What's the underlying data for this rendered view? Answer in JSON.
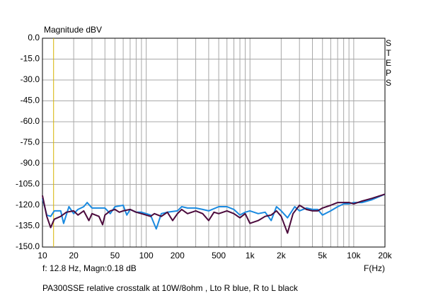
{
  "chart_data": {
    "type": "line",
    "title": "Magnitude dBV",
    "side_label": "STEPS",
    "x_label": "F(Hz)",
    "cursor_readout": "f:  12.8 Hz, Magn:0.18 dB",
    "cursor_x": 12.8,
    "cursor_color": "#d4b400",
    "caption": "PA300SSE relative crosstalk at 10W/8ohm , Lto R blue, R to L black",
    "xscale": "log",
    "grid": true,
    "xlim": [
      10,
      20000
    ],
    "ylim": [
      -150,
      0
    ],
    "xticks": [
      10,
      20,
      50,
      100,
      200,
      500,
      {
        "value": 1000,
        "label": "1k"
      },
      {
        "value": 2000,
        "label": "2k"
      },
      {
        "value": 5000,
        "label": "5k"
      },
      {
        "value": 10000,
        "label": "10k"
      },
      {
        "value": 20000,
        "label": "20k"
      }
    ],
    "x_minor_ticks": [
      30,
      40,
      60,
      70,
      80,
      90,
      300,
      400,
      600,
      700,
      800,
      900,
      3000,
      4000,
      6000,
      7000,
      8000,
      9000
    ],
    "yticks": [
      {
        "value": 0,
        "label": "0.0"
      },
      {
        "value": -15,
        "label": "-15.0"
      },
      {
        "value": -30,
        "label": "-30.0"
      },
      {
        "value": -45,
        "label": "-45.0"
      },
      {
        "value": -60,
        "label": "-60.0"
      },
      {
        "value": -75,
        "label": "-75.0"
      },
      {
        "value": -90,
        "label": "-90.0"
      },
      {
        "value": -105,
        "label": "-105.0"
      },
      {
        "value": -120,
        "label": "-120.0"
      },
      {
        "value": -135,
        "label": "-135.0"
      },
      {
        "value": -150,
        "label": "-150.0"
      }
    ],
    "series": [
      {
        "color": "#1a8ae0",
        "x": [
          10,
          11,
          12,
          13,
          15,
          16,
          18,
          20,
          22,
          25,
          27,
          30,
          40,
          45,
          50,
          60,
          65,
          70,
          80,
          90,
          100,
          110,
          125,
          140,
          160,
          200,
          220,
          250,
          300,
          350,
          400,
          500,
          600,
          700,
          800,
          900,
          1000,
          1200,
          1400,
          1600,
          1800,
          2000,
          2300,
          2700,
          3000,
          3500,
          4000,
          4500,
          5000,
          6000,
          7000,
          8000,
          9000,
          10000,
          12000,
          15000,
          20000
        ],
        "values": [
          -115,
          -127,
          -128,
          -124,
          -124,
          -133,
          -121,
          -126,
          -123,
          -121,
          -118,
          -122,
          -122,
          -126,
          -121,
          -120,
          -127,
          -123,
          -125,
          -125,
          -126,
          -127,
          -137,
          -126,
          -125,
          -124,
          -121,
          -122,
          -122,
          -123,
          -124,
          -121,
          -121,
          -123,
          -127,
          -125,
          -124,
          -126,
          -125,
          -131,
          -121,
          -124,
          -129,
          -121,
          -124,
          -122,
          -123,
          -123,
          -127,
          -124,
          -121,
          -119,
          -119,
          -118,
          -118,
          -116,
          -112
        ]
      },
      {
        "color": "#4b0a3c",
        "x": [
          10,
          11,
          12,
          13,
          15,
          17,
          20,
          22,
          25,
          28,
          30,
          35,
          38,
          40,
          45,
          50,
          55,
          60,
          70,
          80,
          90,
          100,
          110,
          120,
          140,
          160,
          180,
          200,
          220,
          250,
          300,
          350,
          400,
          450,
          500,
          600,
          700,
          800,
          900,
          1000,
          1200,
          1400,
          1600,
          1800,
          2000,
          2300,
          2600,
          3000,
          3500,
          4000,
          4500,
          5000,
          6000,
          7000,
          8000,
          9000,
          10000,
          12000,
          15000,
          20000
        ],
        "values": [
          -113,
          -128,
          -136,
          -130,
          -128,
          -125,
          -124,
          -127,
          -124,
          -131,
          -126,
          -128,
          -134,
          -127,
          -124,
          -123,
          -125,
          -124,
          -123,
          -125,
          -126,
          -127,
          -128,
          -126,
          -128,
          -125,
          -131,
          -126,
          -123,
          -126,
          -124,
          -126,
          -131,
          -125,
          -126,
          -124,
          -126,
          -129,
          -126,
          -133,
          -131,
          -128,
          -127,
          -124,
          -128,
          -140,
          -126,
          -120,
          -123,
          -124,
          -124,
          -122,
          -120,
          -118,
          -118,
          -118,
          -119,
          -117,
          -115,
          -112
        ]
      }
    ]
  }
}
